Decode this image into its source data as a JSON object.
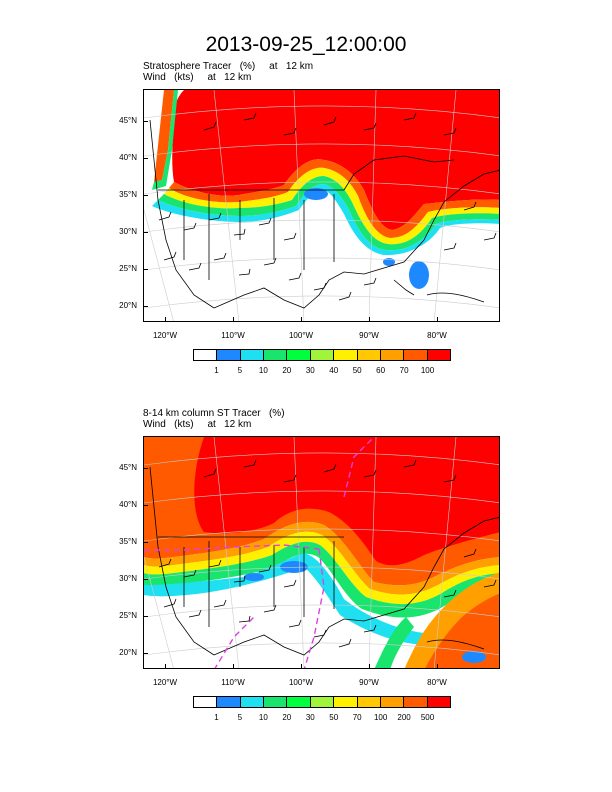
{
  "title": "2013-09-25_12:00:00",
  "colors": {
    "c0": "#ffffff",
    "c1": "#1e88ff",
    "c2": "#1ee0f0",
    "c3": "#19e56e",
    "c4": "#00ff3c",
    "c5": "#a0f53c",
    "c6": "#fff000",
    "c7": "#ffc800",
    "c8": "#ffa000",
    "c9": "#ff5a00",
    "c10": "#ff0000"
  },
  "panels": [
    {
      "subtitle1": "Stratosphere Tracer   (%)     at   12 km",
      "subtitle2": "Wind   (kts)     at   12 km",
      "lat_labels": [
        "45°N",
        "40°N",
        "35°N",
        "30°N",
        "25°N",
        "20°N"
      ],
      "lon_labels": [
        "120°W",
        "110°W",
        "100°W",
        "90°W",
        "80°W"
      ],
      "colorbar_labels": [
        "1",
        "5",
        "10",
        "20",
        "30",
        "40",
        "50",
        "60",
        "70",
        "100"
      ],
      "colorbar_colors": [
        "#ffffff",
        "#1e88ff",
        "#1ee0f0",
        "#19e56e",
        "#00ff3c",
        "#a0f53c",
        "#fff000",
        "#ffc800",
        "#ffa000",
        "#ff5a00",
        "#ff0000"
      ]
    },
    {
      "subtitle1": "8-14 km column ST Tracer   (%)",
      "subtitle2": "Wind   (kts)     at   12 km",
      "lat_labels": [
        "45°N",
        "40°N",
        "35°N",
        "30°N",
        "25°N",
        "20°N"
      ],
      "lon_labels": [
        "120°W",
        "110°W",
        "100°W",
        "90°W",
        "80°W"
      ],
      "colorbar_labels": [
        "1",
        "5",
        "10",
        "20",
        "30",
        "50",
        "70",
        "100",
        "200",
        "500"
      ],
      "colorbar_colors": [
        "#ffffff",
        "#1e88ff",
        "#1ee0f0",
        "#19e56e",
        "#00ff3c",
        "#a0f53c",
        "#fff000",
        "#ffc800",
        "#ffa000",
        "#ff5a00",
        "#ff0000"
      ]
    }
  ]
}
